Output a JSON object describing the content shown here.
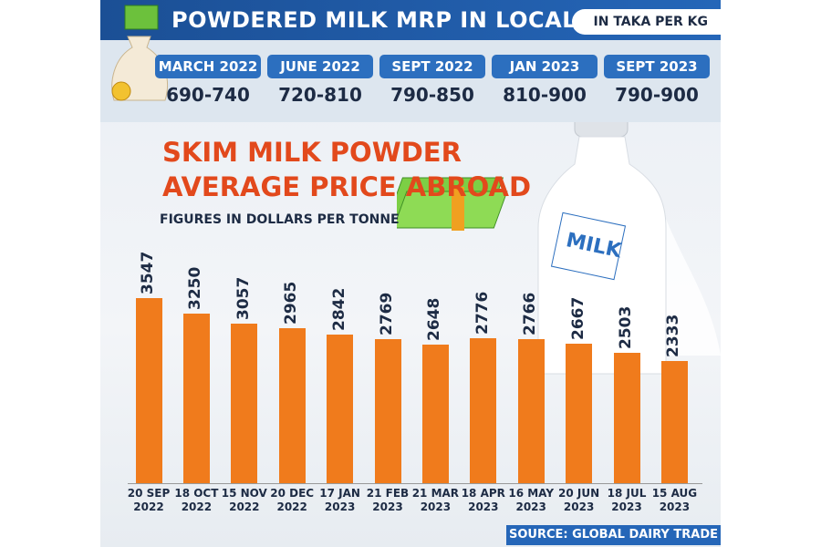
{
  "header": {
    "title": "POWDERED MILK MRP IN LOCAL MKT",
    "unit": "IN TAKA PER KG",
    "local_prices": [
      {
        "period": "MARCH 2022",
        "range": "690-740"
      },
      {
        "period": "JUNE 2022",
        "range": "720-810"
      },
      {
        "period": "SEPT 2022",
        "range": "790-850"
      },
      {
        "period": "JAN 2023",
        "range": "810-900"
      },
      {
        "period": "SEPT 2023",
        "range": "790-900"
      }
    ]
  },
  "chart_data": {
    "type": "bar",
    "title": "SKIM MILK POWDER AVERAGE PRICE ABROAD",
    "subtitle": "FIGURES IN DOLLARS PER TONNE",
    "categories": [
      "20 SEP 2022",
      "18 OCT 2022",
      "15 NOV 2022",
      "20 DEC 2022",
      "17 JAN 2023",
      "21 FEB 2023",
      "21 MAR 2023",
      "18 APR 2023",
      "16 MAY 2023",
      "20 JUN 2023",
      "18 JUL 2023",
      "15 AUG 2023"
    ],
    "values": [
      3547,
      3250,
      3057,
      2965,
      2842,
      2769,
      2648,
      2776,
      2766,
      2667,
      2503,
      2333
    ],
    "color": "#f07b1c"
  },
  "footer": {
    "source": "SOURCE: GLOBAL DAIRY TRADE"
  }
}
